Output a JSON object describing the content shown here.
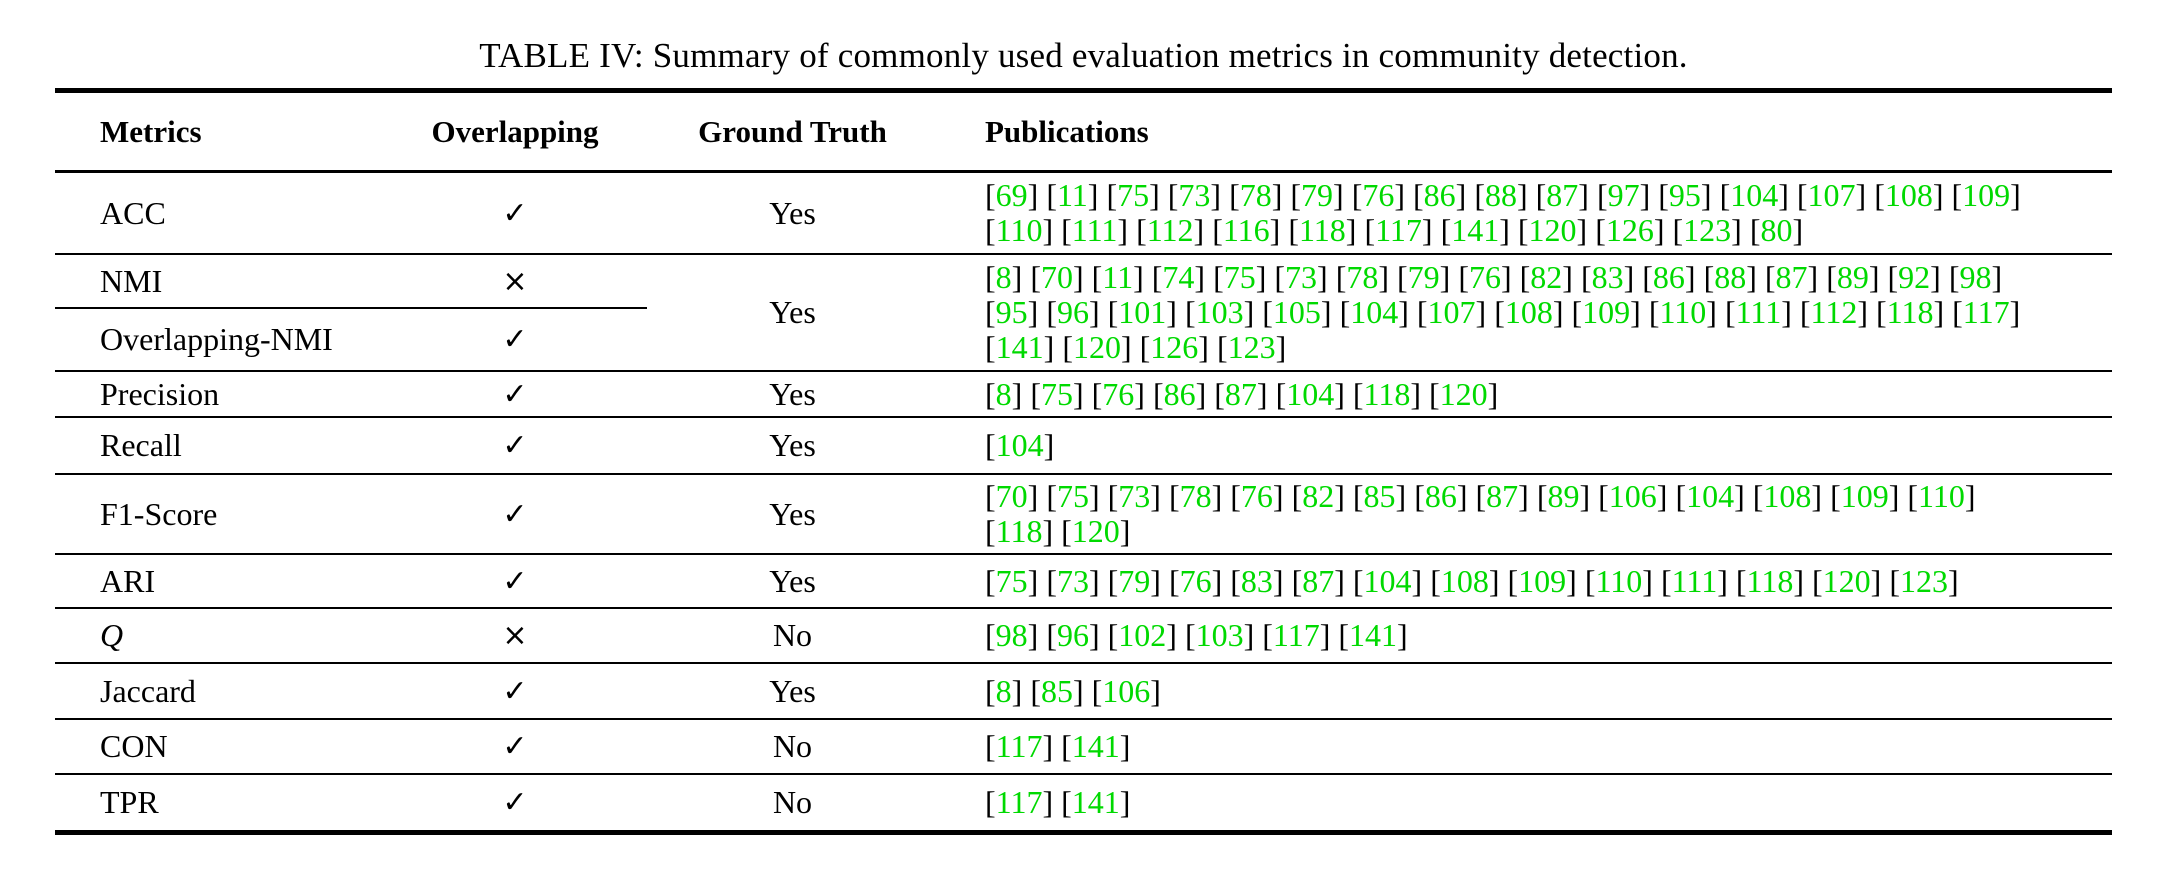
{
  "title": "TABLE IV: Summary of commonly used evaluation metrics in community detection.",
  "colors": {
    "citation_green": "#00d900",
    "text": "#000000",
    "rule": "#000000"
  },
  "table": {
    "headers": [
      "Metrics",
      "Overlapping",
      "Ground Truth",
      "Publications"
    ],
    "rows": [
      {
        "metric": "ACC",
        "overlapping": "✓",
        "ground_truth": "Yes",
        "publications": [
          69,
          11,
          75,
          73,
          78,
          79,
          76,
          86,
          88,
          87,
          97,
          95,
          104,
          107,
          108,
          109,
          110,
          111,
          112,
          116,
          118,
          117,
          141,
          120,
          126,
          123,
          80
        ]
      },
      {
        "sub": [
          {
            "metric": "NMI",
            "overlapping": "×"
          },
          {
            "metric": "Overlapping-NMI",
            "overlapping": "✓"
          }
        ],
        "ground_truth": "Yes",
        "publications": [
          8,
          70,
          11,
          74,
          75,
          73,
          78,
          79,
          76,
          82,
          83,
          86,
          88,
          87,
          89,
          92,
          98,
          95,
          96,
          101,
          103,
          105,
          104,
          107,
          108,
          109,
          110,
          111,
          112,
          118,
          117,
          141,
          120,
          126,
          123
        ]
      },
      {
        "metric": "Precision",
        "overlapping": "✓",
        "ground_truth": "Yes",
        "publications": [
          8,
          75,
          76,
          86,
          87,
          104,
          118,
          120
        ]
      },
      {
        "metric": "Recall",
        "overlapping": "✓",
        "ground_truth": "Yes",
        "publications": [
          104
        ]
      },
      {
        "metric": "F1-Score",
        "overlapping": "✓",
        "ground_truth": "Yes",
        "publications": [
          70,
          75,
          73,
          78,
          76,
          82,
          85,
          86,
          87,
          89,
          106,
          104,
          108,
          109,
          110,
          118,
          120
        ]
      },
      {
        "metric": "ARI",
        "overlapping": "✓",
        "ground_truth": "Yes",
        "publications": [
          75,
          73,
          79,
          76,
          83,
          87,
          104,
          108,
          109,
          110,
          111,
          118,
          120,
          123
        ]
      },
      {
        "metric": "Q",
        "overlapping": "×",
        "ground_truth": "No",
        "publications": [
          98,
          96,
          102,
          103,
          117,
          141
        ]
      },
      {
        "metric": "Jaccard",
        "overlapping": "✓",
        "ground_truth": "Yes",
        "publications": [
          8,
          85,
          106
        ]
      },
      {
        "metric": "CON",
        "overlapping": "✓",
        "ground_truth": "No",
        "publications": [
          117,
          141
        ]
      },
      {
        "metric": "TPR",
        "overlapping": "✓",
        "ground_truth": "No",
        "publications": [
          117,
          141
        ]
      }
    ]
  }
}
